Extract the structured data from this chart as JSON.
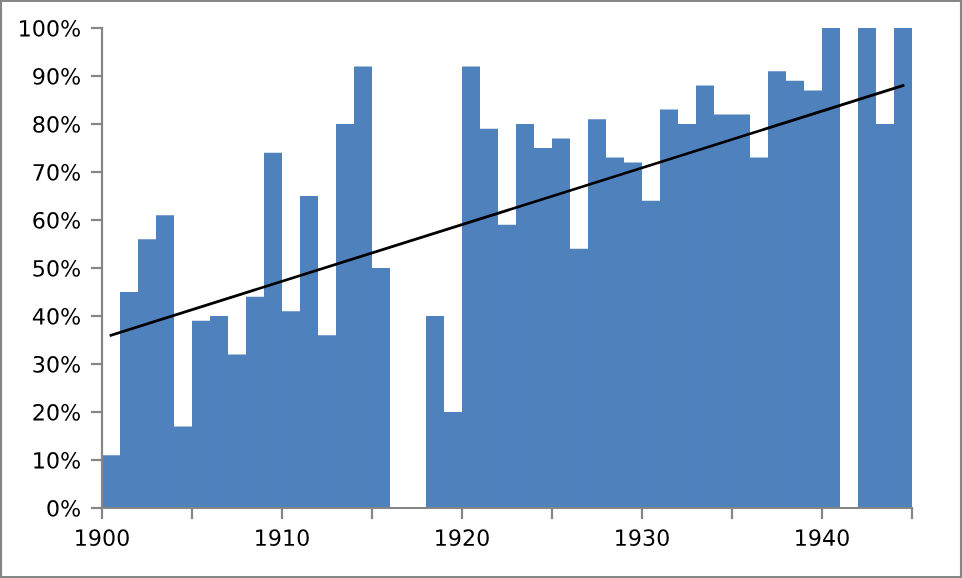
{
  "chart_data": {
    "type": "histogram",
    "bins": [
      1900,
      1901,
      1902,
      1903,
      1904,
      1905,
      1906,
      1907,
      1908,
      1909,
      1910,
      1911,
      1912,
      1913,
      1914,
      1915,
      1916,
      1917,
      1918,
      1919,
      1920,
      1921,
      1922,
      1923,
      1924,
      1925,
      1926,
      1927,
      1928,
      1929,
      1930,
      1931,
      1932,
      1933,
      1934,
      1935,
      1936,
      1937,
      1938,
      1939,
      1940,
      1941,
      1942,
      1943,
      1944,
      1945
    ],
    "series": [
      {
        "color": "#4f81bd",
        "values": [
          11,
          45,
          56,
          61,
          17,
          39,
          40,
          32,
          44,
          74,
          41,
          65,
          36,
          80,
          92,
          50,
          null,
          null,
          40,
          20,
          92,
          79,
          59,
          80,
          75,
          77,
          54,
          81,
          73,
          72,
          64,
          83,
          80,
          88,
          82,
          82,
          73,
          91,
          89,
          87,
          100,
          null,
          100,
          80,
          100
        ]
      },
      {
        "type": "line",
        "color": "#000000",
        "x": [
          1900.5,
          1944.5
        ],
        "values": [
          36,
          88
        ]
      }
    ],
    "xlim": [
      1900,
      1945
    ],
    "xticks": [
      1900,
      {
        "value": 1905,
        "label": null
      },
      1910,
      {
        "value": 1915,
        "label": null
      },
      1920,
      {
        "value": 1925,
        "label": null
      },
      1930,
      {
        "value": 1935,
        "label": null
      },
      1940,
      {
        "value": 1945,
        "label": null
      }
    ],
    "ylim": [
      0,
      100
    ],
    "yticks": [
      {
        "value": 0,
        "label": "0%"
      },
      {
        "value": 10,
        "label": "10%"
      },
      {
        "value": 20,
        "label": "20%"
      },
      {
        "value": 30,
        "label": "30%"
      },
      {
        "value": 40,
        "label": "40%"
      },
      {
        "value": 50,
        "label": "50%"
      },
      {
        "value": 60,
        "label": "60%"
      },
      {
        "value": 70,
        "label": "70%"
      },
      {
        "value": 80,
        "label": "80%"
      },
      {
        "value": 90,
        "label": "90%"
      },
      {
        "value": 100,
        "label": "100%"
      }
    ],
    "grid": false,
    "legend": false
  }
}
